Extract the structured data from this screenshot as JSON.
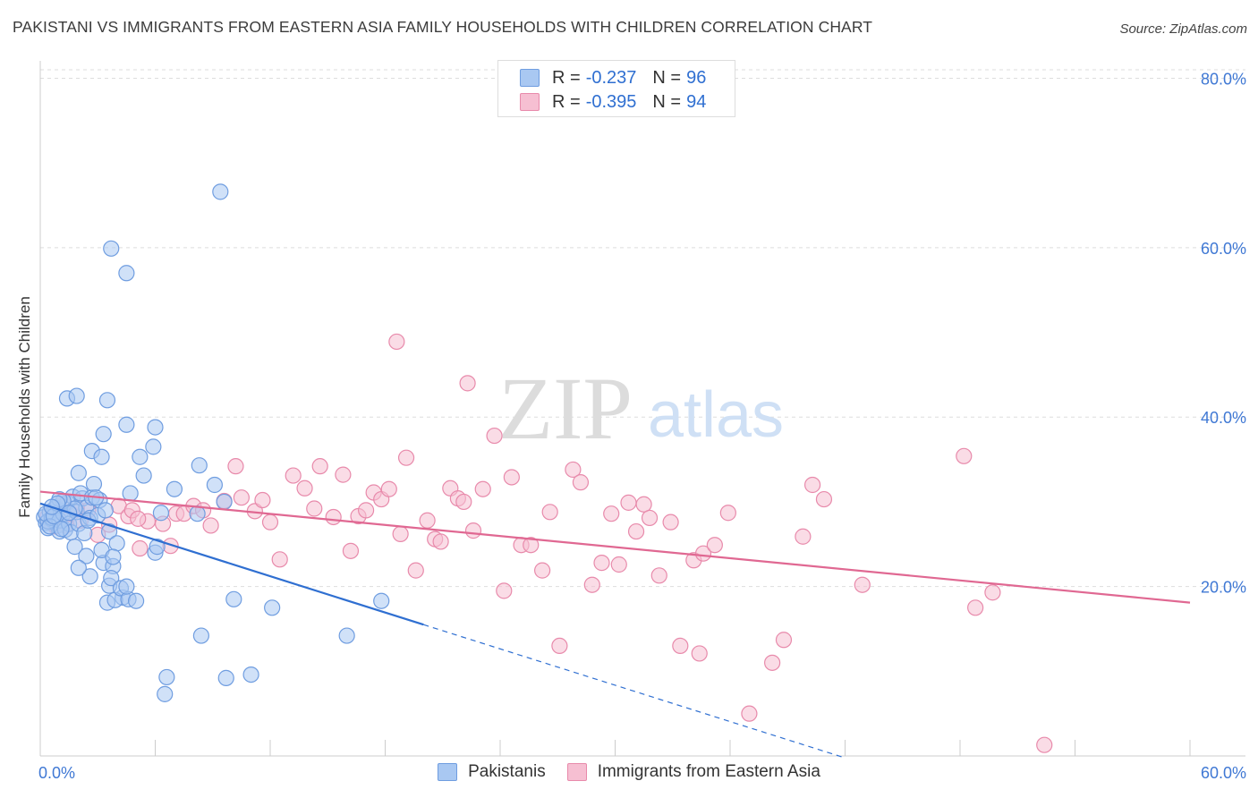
{
  "header": {
    "title": "PAKISTANI VS IMMIGRANTS FROM EASTERN ASIA FAMILY HOUSEHOLDS WITH CHILDREN CORRELATION CHART",
    "source": "Source: ZipAtlas.com"
  },
  "watermark": {
    "zip": "ZIP",
    "atlas": "atlas"
  },
  "legend_top": {
    "rows": [
      {
        "r_label": "R =",
        "r_value": "-0.237",
        "n_label": "N =",
        "n_value": "96"
      },
      {
        "r_label": "R =",
        "r_value": "-0.395",
        "n_label": "N =",
        "n_value": "94"
      }
    ]
  },
  "colors": {
    "blue_fill": "#a9c8f2",
    "blue_stroke": "#6f9de0",
    "blue_line": "#2f6fd1",
    "pink_fill": "#f6bfd2",
    "pink_stroke": "#e88aab",
    "pink_line": "#e06892",
    "tick_label": "#3f78d4",
    "grid": "#dddddd"
  },
  "chart_data": {
    "type": "scatter",
    "title": "PAKISTANI VS IMMIGRANTS FROM EASTERN ASIA FAMILY HOUSEHOLDS WITH CHILDREN CORRELATION CHART",
    "xlabel": "",
    "ylabel": "Family Households with Children",
    "xlim": [
      0,
      60
    ],
    "ylim": [
      0,
      81
    ],
    "x_tick_labels": [
      "0.0%",
      "60.0%"
    ],
    "y_ticks": [
      20,
      40,
      60,
      80
    ],
    "y_tick_labels": [
      "20.0%",
      "40.0%",
      "60.0%",
      "80.0%"
    ],
    "legend_position": "bottom",
    "series": [
      {
        "name": "Pakistanis",
        "color": "#a9c8f2",
        "trend": {
          "x0": 0,
          "y0": 29.8,
          "x1": 20,
          "y1": 15.5,
          "dash_to_x": 42
        },
        "points": [
          [
            0.2,
            28.2
          ],
          [
            0.3,
            27.5
          ],
          [
            0.4,
            26.9
          ],
          [
            0.5,
            28.8
          ],
          [
            0.6,
            27.9
          ],
          [
            0.7,
            29.1
          ],
          [
            0.8,
            28.4
          ],
          [
            0.9,
            27.2
          ],
          [
            1.0,
            26.5
          ],
          [
            1.1,
            28.9
          ],
          [
            0.4,
            27.7
          ],
          [
            0.6,
            28.1
          ],
          [
            0.8,
            29.3
          ],
          [
            1.0,
            27.8
          ],
          [
            1.2,
            28.6
          ],
          [
            1.3,
            26.7
          ],
          [
            1.5,
            27.4
          ],
          [
            0.3,
            28.6
          ],
          [
            0.5,
            27.1
          ],
          [
            0.7,
            28.3
          ],
          [
            1.4,
            29.9
          ],
          [
            1.6,
            26.4
          ],
          [
            1.7,
            30.6
          ],
          [
            1.9,
            28.8
          ],
          [
            2.0,
            27.4
          ],
          [
            2.2,
            30.4
          ],
          [
            2.4,
            29.3
          ],
          [
            2.6,
            28.1
          ],
          [
            1.8,
            29.2
          ],
          [
            1.2,
            30.1
          ],
          [
            1.0,
            30.3
          ],
          [
            2.1,
            31.0
          ],
          [
            2.3,
            26.3
          ],
          [
            0.9,
            29.8
          ],
          [
            1.1,
            26.8
          ],
          [
            0.6,
            29.4
          ],
          [
            1.5,
            28.7
          ],
          [
            2.5,
            27.8
          ],
          [
            2.7,
            30.5
          ],
          [
            3.0,
            28.4
          ],
          [
            2.0,
            33.4
          ],
          [
            2.8,
            32.1
          ],
          [
            3.1,
            30.2
          ],
          [
            3.4,
            29.0
          ],
          [
            2.9,
            30.5
          ],
          [
            1.8,
            24.7
          ],
          [
            2.4,
            23.6
          ],
          [
            2.6,
            21.2
          ],
          [
            3.3,
            22.8
          ],
          [
            3.6,
            26.5
          ],
          [
            3.8,
            22.4
          ],
          [
            4.0,
            25.1
          ],
          [
            3.2,
            24.3
          ],
          [
            2.0,
            22.2
          ],
          [
            4.3,
            18.7
          ],
          [
            3.5,
            18.1
          ],
          [
            3.6,
            20.1
          ],
          [
            3.9,
            18.4
          ],
          [
            3.7,
            21.0
          ],
          [
            4.2,
            19.8
          ],
          [
            4.6,
            18.5
          ],
          [
            4.5,
            20.0
          ],
          [
            5.0,
            18.3
          ],
          [
            6.0,
            24.0
          ],
          [
            6.1,
            24.7
          ],
          [
            3.8,
            23.5
          ],
          [
            6.3,
            28.7
          ],
          [
            7.0,
            31.5
          ],
          [
            8.3,
            34.3
          ],
          [
            9.6,
            30.0
          ],
          [
            9.1,
            32.0
          ],
          [
            8.2,
            28.6
          ],
          [
            1.4,
            42.2
          ],
          [
            1.9,
            42.5
          ],
          [
            3.5,
            42.0
          ],
          [
            2.7,
            36.0
          ],
          [
            3.2,
            35.3
          ],
          [
            3.3,
            38.0
          ],
          [
            4.5,
            39.1
          ],
          [
            5.9,
            36.5
          ],
          [
            6.0,
            38.8
          ],
          [
            5.2,
            35.3
          ],
          [
            5.4,
            33.1
          ],
          [
            4.7,
            31.0
          ],
          [
            3.7,
            59.9
          ],
          [
            4.5,
            57.0
          ],
          [
            9.4,
            66.6
          ],
          [
            6.6,
            9.3
          ],
          [
            6.5,
            7.3
          ],
          [
            9.7,
            9.2
          ],
          [
            11.0,
            9.6
          ],
          [
            10.1,
            18.5
          ],
          [
            8.4,
            14.2
          ],
          [
            12.1,
            17.5
          ],
          [
            16.0,
            14.2
          ],
          [
            17.8,
            18.3
          ]
        ]
      },
      {
        "name": "Immigrants from Eastern Asia",
        "color": "#f6bfd2",
        "trend": {
          "x0": 0,
          "y0": 31.2,
          "x1": 60,
          "y1": 18.1
        },
        "points": [
          [
            0.4,
            28.3
          ],
          [
            0.6,
            27.5
          ],
          [
            0.9,
            28.8
          ],
          [
            1.3,
            27.2
          ],
          [
            1.6,
            28.6
          ],
          [
            1.2,
            30.1
          ],
          [
            0.8,
            27.1
          ],
          [
            2.1,
            27.8
          ],
          [
            2.5,
            29.0
          ],
          [
            3.0,
            26.1
          ],
          [
            3.6,
            27.3
          ],
          [
            4.1,
            29.5
          ],
          [
            4.6,
            28.3
          ],
          [
            4.8,
            29.0
          ],
          [
            5.2,
            24.5
          ],
          [
            5.6,
            27.7
          ],
          [
            6.4,
            27.4
          ],
          [
            6.8,
            24.8
          ],
          [
            7.1,
            28.6
          ],
          [
            7.5,
            28.6
          ],
          [
            8.0,
            29.5
          ],
          [
            8.5,
            29.0
          ],
          [
            8.9,
            27.2
          ],
          [
            9.6,
            30.1
          ],
          [
            10.2,
            34.2
          ],
          [
            10.5,
            30.5
          ],
          [
            11.2,
            28.9
          ],
          [
            11.6,
            30.2
          ],
          [
            12.0,
            27.6
          ],
          [
            12.5,
            23.2
          ],
          [
            13.2,
            33.1
          ],
          [
            13.8,
            31.6
          ],
          [
            14.3,
            29.2
          ],
          [
            14.6,
            34.2
          ],
          [
            15.3,
            28.2
          ],
          [
            15.8,
            33.2
          ],
          [
            16.2,
            24.2
          ],
          [
            16.6,
            28.3
          ],
          [
            17.0,
            29.0
          ],
          [
            17.4,
            31.1
          ],
          [
            17.8,
            30.3
          ],
          [
            18.2,
            31.5
          ],
          [
            18.8,
            26.2
          ],
          [
            19.1,
            35.2
          ],
          [
            19.6,
            21.9
          ],
          [
            20.2,
            27.8
          ],
          [
            20.6,
            25.6
          ],
          [
            20.9,
            25.3
          ],
          [
            21.4,
            31.6
          ],
          [
            21.8,
            30.4
          ],
          [
            22.1,
            30.0
          ],
          [
            22.6,
            26.6
          ],
          [
            23.1,
            31.5
          ],
          [
            23.7,
            37.8
          ],
          [
            24.2,
            19.5
          ],
          [
            24.6,
            32.9
          ],
          [
            25.1,
            24.9
          ],
          [
            25.6,
            24.9
          ],
          [
            26.2,
            21.9
          ],
          [
            26.6,
            28.8
          ],
          [
            27.1,
            13.0
          ],
          [
            27.8,
            33.8
          ],
          [
            28.2,
            32.3
          ],
          [
            28.8,
            20.2
          ],
          [
            29.3,
            22.8
          ],
          [
            29.8,
            28.6
          ],
          [
            30.2,
            22.6
          ],
          [
            30.7,
            29.9
          ],
          [
            31.1,
            26.5
          ],
          [
            31.5,
            29.7
          ],
          [
            31.8,
            28.1
          ],
          [
            32.3,
            21.3
          ],
          [
            32.9,
            27.6
          ],
          [
            33.4,
            13.0
          ],
          [
            34.1,
            23.1
          ],
          [
            34.4,
            12.1
          ],
          [
            34.6,
            23.9
          ],
          [
            35.2,
            24.9
          ],
          [
            35.9,
            28.7
          ],
          [
            37.0,
            5.0
          ],
          [
            38.2,
            11.0
          ],
          [
            38.8,
            13.7
          ],
          [
            39.8,
            25.9
          ],
          [
            40.3,
            32.0
          ],
          [
            40.9,
            30.3
          ],
          [
            42.9,
            20.2
          ],
          [
            48.2,
            35.4
          ],
          [
            48.8,
            17.5
          ],
          [
            49.7,
            19.3
          ],
          [
            52.4,
            1.3
          ],
          [
            18.6,
            48.9
          ],
          [
            22.3,
            44.0
          ],
          [
            5.1,
            28.0
          ],
          [
            1.9,
            29.3
          ]
        ]
      }
    ]
  }
}
